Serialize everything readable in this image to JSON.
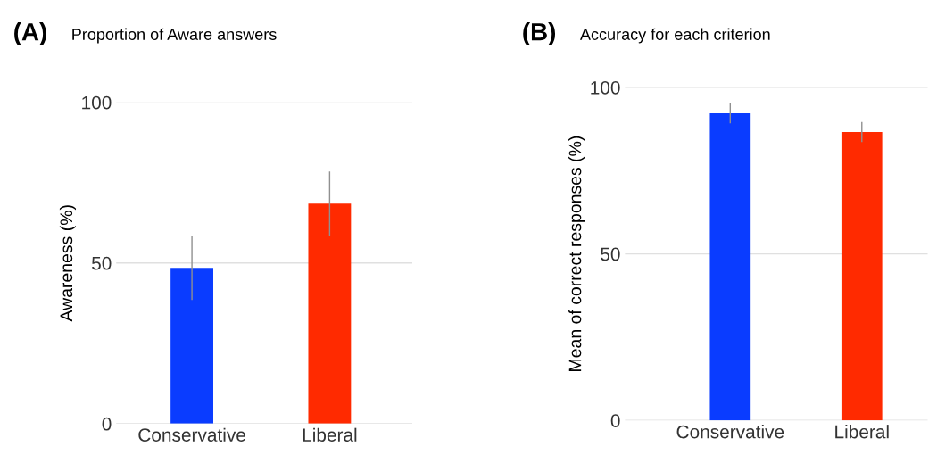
{
  "chart_data": [
    {
      "type": "bar",
      "title": "(A)",
      "subtitle": "Proportion of Aware answers",
      "ylabel": "Awareness (%)",
      "categories": [
        "Conservative",
        "Liberal"
      ],
      "values": [
        48.5,
        68.5
      ],
      "errors": [
        10,
        10
      ],
      "colors": [
        "#0a3cff",
        "#ff2a00"
      ],
      "ylim": [
        0,
        100
      ],
      "yticks": [
        0,
        50,
        100
      ],
      "grid": "y"
    },
    {
      "type": "bar",
      "title": "(B)",
      "subtitle": "Accuracy for each criterion",
      "ylabel": "Mean of correct responses (%)",
      "categories": [
        "Conservative",
        "Liberal"
      ],
      "values": [
        92.2,
        86.6
      ],
      "errors": [
        3,
        3
      ],
      "colors": [
        "#0a3cff",
        "#ff2a00"
      ],
      "ylim": [
        0,
        100
      ],
      "yticks": [
        0,
        50,
        100
      ],
      "grid": "y"
    }
  ]
}
